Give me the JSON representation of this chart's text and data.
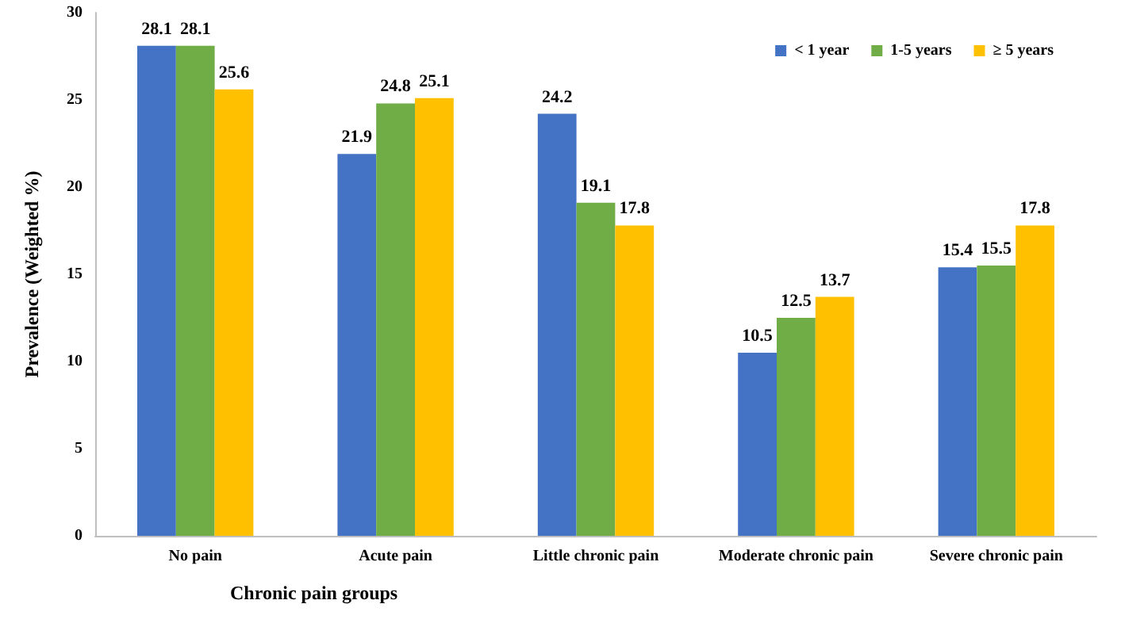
{
  "chart_data": {
    "type": "bar",
    "xlabel": "Chronic pain groups",
    "ylabel": "Prevalence (Weighted %)",
    "categories": [
      "No pain",
      "Acute pain",
      "Little chronic pain",
      "Moderate chronic pain",
      "Severe chronic pain"
    ],
    "series": [
      {
        "name": "< 1 year",
        "color": "#4472c4",
        "values": [
          28.1,
          21.9,
          24.2,
          10.5,
          15.4
        ]
      },
      {
        "name": "1-5 years",
        "color": "#70ad47",
        "values": [
          28.1,
          24.8,
          19.1,
          12.5,
          15.5
        ]
      },
      {
        "name": "≥ 5 years",
        "color": "#ffc000",
        "values": [
          25.6,
          25.1,
          17.8,
          13.7,
          17.8
        ]
      }
    ],
    "ylim": [
      0,
      30
    ],
    "yticks": [
      0,
      5,
      10,
      15,
      20,
      25,
      30
    ],
    "grid": false,
    "legend": "top right",
    "data_labels": true
  }
}
